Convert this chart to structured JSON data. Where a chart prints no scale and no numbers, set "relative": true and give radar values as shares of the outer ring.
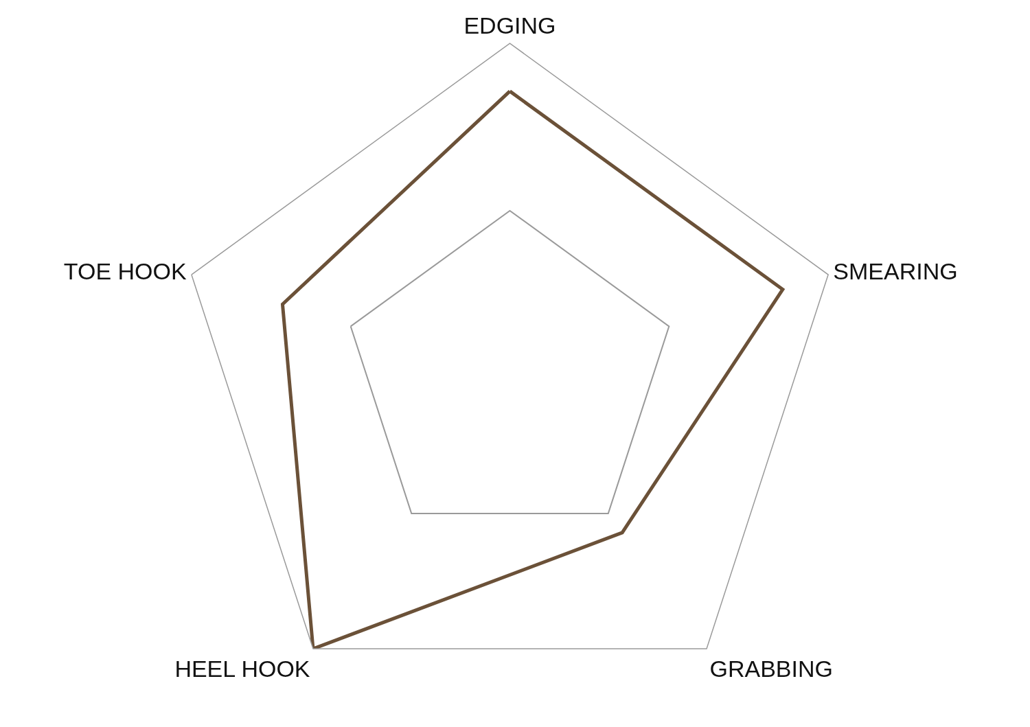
{
  "chart_data": {
    "type": "radar",
    "relative": true,
    "categories": [
      "EDGING",
      "SMEARING",
      "GRABBING",
      "HEEL HOOK",
      "TOE HOOK"
    ],
    "series": [
      {
        "color": "#6b5138",
        "values": [
          0.857,
          0.857,
          0.571,
          1,
          0.714
        ]
      }
    ],
    "grid": true,
    "marker": "none"
  }
}
